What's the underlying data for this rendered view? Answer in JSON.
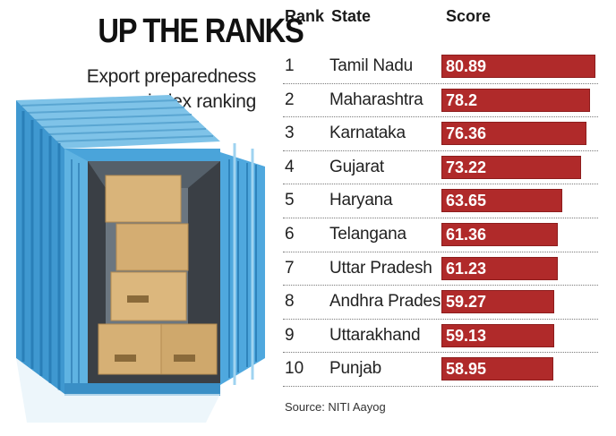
{
  "chart_data": {
    "type": "bar",
    "title": "UP THE RANKS",
    "subtitle": "Export preparedness index ranking",
    "columns": [
      "Rank",
      "State",
      "Score"
    ],
    "categories": [
      "Tamil Nadu",
      "Maharashtra",
      "Karnataka",
      "Gujarat",
      "Haryana",
      "Telangana",
      "Uttar Pradesh",
      "Andhra Pradesh",
      "Uttarakhand",
      "Punjab"
    ],
    "ranks": [
      "1",
      "2",
      "3",
      "4",
      "5",
      "6",
      "7",
      "8",
      "9",
      "10"
    ],
    "values": [
      80.89,
      78.2,
      76.36,
      73.22,
      63.65,
      61.36,
      61.23,
      59.27,
      59.13,
      58.95
    ],
    "value_labels": [
      "80.89",
      "78.2",
      "76.36",
      "73.22",
      "63.65",
      "61.36",
      "61.23",
      "59.27",
      "59.13",
      "58.95"
    ],
    "orientation": "horizontal",
    "bar_color": "#b02a2a",
    "source": "Source: NITI Aayog"
  }
}
